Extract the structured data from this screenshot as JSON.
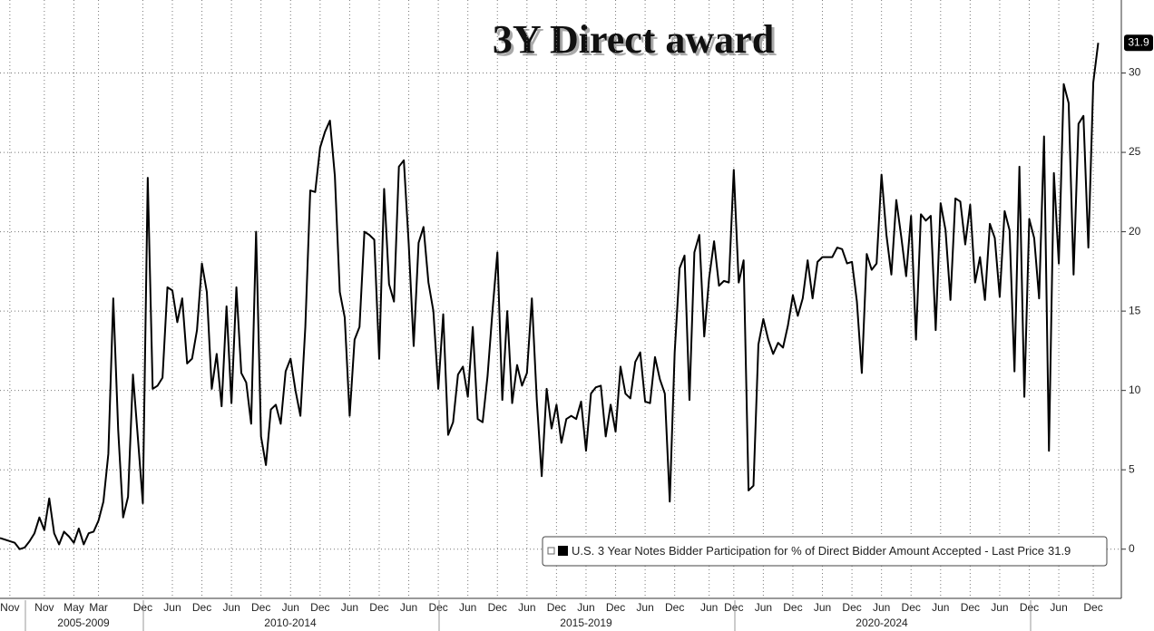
{
  "chart_data": {
    "type": "line",
    "title": "3Y Direct award",
    "categories": [
      null,
      null,
      "Nov",
      null,
      null,
      null,
      null,
      null,
      null,
      "Nov",
      null,
      null,
      null,
      null,
      null,
      "May",
      null,
      null,
      null,
      null,
      "Mar",
      null,
      null,
      null,
      null,
      null,
      null,
      null,
      null,
      "Dec",
      null,
      null,
      null,
      null,
      null,
      "Jun",
      null,
      null,
      null,
      null,
      null,
      "Dec",
      null,
      null,
      null,
      null,
      null,
      "Jun",
      null,
      null,
      null,
      null,
      null,
      "Dec",
      null,
      null,
      null,
      null,
      null,
      "Jun",
      null,
      null,
      null,
      null,
      null,
      "Dec",
      null,
      null,
      null,
      null,
      null,
      "Jun",
      null,
      null,
      null,
      null,
      null,
      "Dec",
      null,
      null,
      null,
      null,
      null,
      "Jun",
      null,
      null,
      null,
      null,
      null,
      "Dec",
      null,
      null,
      null,
      null,
      null,
      "Jun",
      null,
      null,
      null,
      null,
      null,
      "Dec",
      null,
      null,
      null,
      null,
      null,
      "Jun",
      null,
      null,
      null,
      null,
      null,
      "Dec",
      null,
      null,
      null,
      null,
      null,
      "Jun",
      null,
      null,
      null,
      null,
      null,
      "Dec",
      null,
      null,
      null,
      null,
      null,
      "Jun",
      null,
      null,
      null,
      null,
      null,
      "Dec",
      null,
      null,
      null,
      null,
      null,
      null,
      "Jun",
      null,
      null,
      null,
      null,
      "Dec",
      null,
      null,
      null,
      null,
      null,
      "Jun",
      null,
      null,
      null,
      null,
      null,
      "Dec",
      null,
      null,
      null,
      null,
      null,
      "Jun",
      null,
      null,
      null,
      null,
      null,
      "Dec",
      null,
      null,
      null,
      null,
      null,
      "Jun",
      null,
      null,
      null,
      null,
      null,
      "Dec",
      null,
      null,
      null,
      null,
      null,
      "Jun",
      null,
      null,
      null,
      null,
      null,
      "Dec",
      null,
      null,
      null,
      null,
      null,
      "Jun",
      null,
      null,
      null,
      null,
      null,
      "Dec",
      null,
      null,
      null,
      null,
      null,
      "Jun",
      null,
      null,
      null,
      null,
      null,
      null,
      "Dec",
      null
    ],
    "periods": [
      "2005-2009",
      "2010-2014",
      "2015-2019",
      "2020-2024"
    ],
    "series": [
      {
        "name": "U.S. 3 Year Notes Bidder Participation for % of Direct Bidder Amount Accepted - Last Price",
        "color": "#000000",
        "values": [
          0.7,
          0.6,
          0.5,
          0.4,
          0.0,
          0.1,
          0.5,
          1.0,
          2.0,
          1.2,
          3.2,
          1.0,
          0.3,
          1.1,
          0.8,
          0.4,
          1.3,
          0.3,
          1.0,
          1.1,
          1.8,
          3.0,
          6.0,
          15.8,
          7.5,
          2.0,
          3.3,
          11.0,
          7.0,
          2.9,
          23.4,
          10.1,
          10.3,
          10.8,
          16.5,
          16.3,
          14.3,
          15.8,
          11.7,
          12.0,
          13.8,
          18.0,
          16.2,
          10.1,
          12.3,
          9.0,
          15.3,
          9.2,
          16.5,
          11.1,
          10.5,
          7.9,
          20.0,
          7.1,
          5.3,
          8.8,
          9.1,
          7.9,
          11.2,
          12.0,
          10.0,
          8.4,
          14.0,
          22.6,
          22.5,
          25.3,
          26.3,
          27.0,
          23.5,
          16.2,
          14.6,
          8.4,
          13.2,
          14.0,
          20.0,
          19.8,
          19.5,
          12.0,
          22.7,
          16.7,
          15.6,
          24.1,
          24.5,
          19.2,
          12.8,
          19.3,
          20.3,
          16.8,
          15.0,
          10.1,
          14.8,
          7.2,
          8.0,
          11.0,
          11.5,
          9.6,
          14.0,
          8.2,
          8.0,
          10.9,
          15.0,
          18.7,
          9.4,
          15.0,
          9.2,
          11.6,
          10.3,
          11.1,
          15.8,
          9.4,
          4.6,
          10.1,
          7.6,
          9.1,
          6.7,
          8.2,
          8.4,
          8.2,
          9.3,
          6.2,
          9.8,
          10.2,
          10.3,
          7.1,
          9.1,
          7.4,
          11.5,
          9.8,
          9.5,
          11.8,
          12.4,
          9.3,
          9.2,
          12.1,
          10.7,
          9.8,
          3.0,
          12.4,
          17.7,
          18.5,
          9.4,
          18.7,
          19.8,
          13.4,
          17.1,
          19.4,
          16.6,
          16.9,
          16.8,
          23.9,
          16.8,
          18.2,
          3.7,
          4.0,
          12.9,
          14.5,
          13.2,
          12.3,
          13.0,
          12.7,
          14.1,
          16.0,
          14.7,
          15.8,
          18.2,
          15.8,
          18.1,
          18.4,
          18.4,
          18.4,
          19.0,
          18.9,
          18.0,
          18.1,
          15.6,
          11.1,
          18.6,
          17.6,
          18.0,
          23.6,
          19.8,
          17.3,
          22.0,
          19.7,
          17.2,
          21.0,
          13.2,
          21.1,
          20.7,
          21.0,
          13.8,
          21.8,
          20.1,
          15.7,
          22.1,
          21.9,
          19.2,
          21.7,
          16.8,
          18.4,
          15.7,
          20.5,
          19.6,
          15.9,
          21.3,
          20.1,
          11.2,
          24.1,
          9.6,
          20.8,
          19.6,
          15.8,
          26.0,
          6.2,
          23.7,
          18.0,
          29.3,
          28.1,
          17.3,
          26.8,
          27.3,
          19.0,
          29.4,
          31.9
        ]
      }
    ],
    "ylim": [
      -3.1,
      34.6
    ],
    "yticks": [
      0,
      5,
      10,
      15,
      20,
      25,
      30
    ],
    "grid": true,
    "legend_position": "lower right"
  }
}
